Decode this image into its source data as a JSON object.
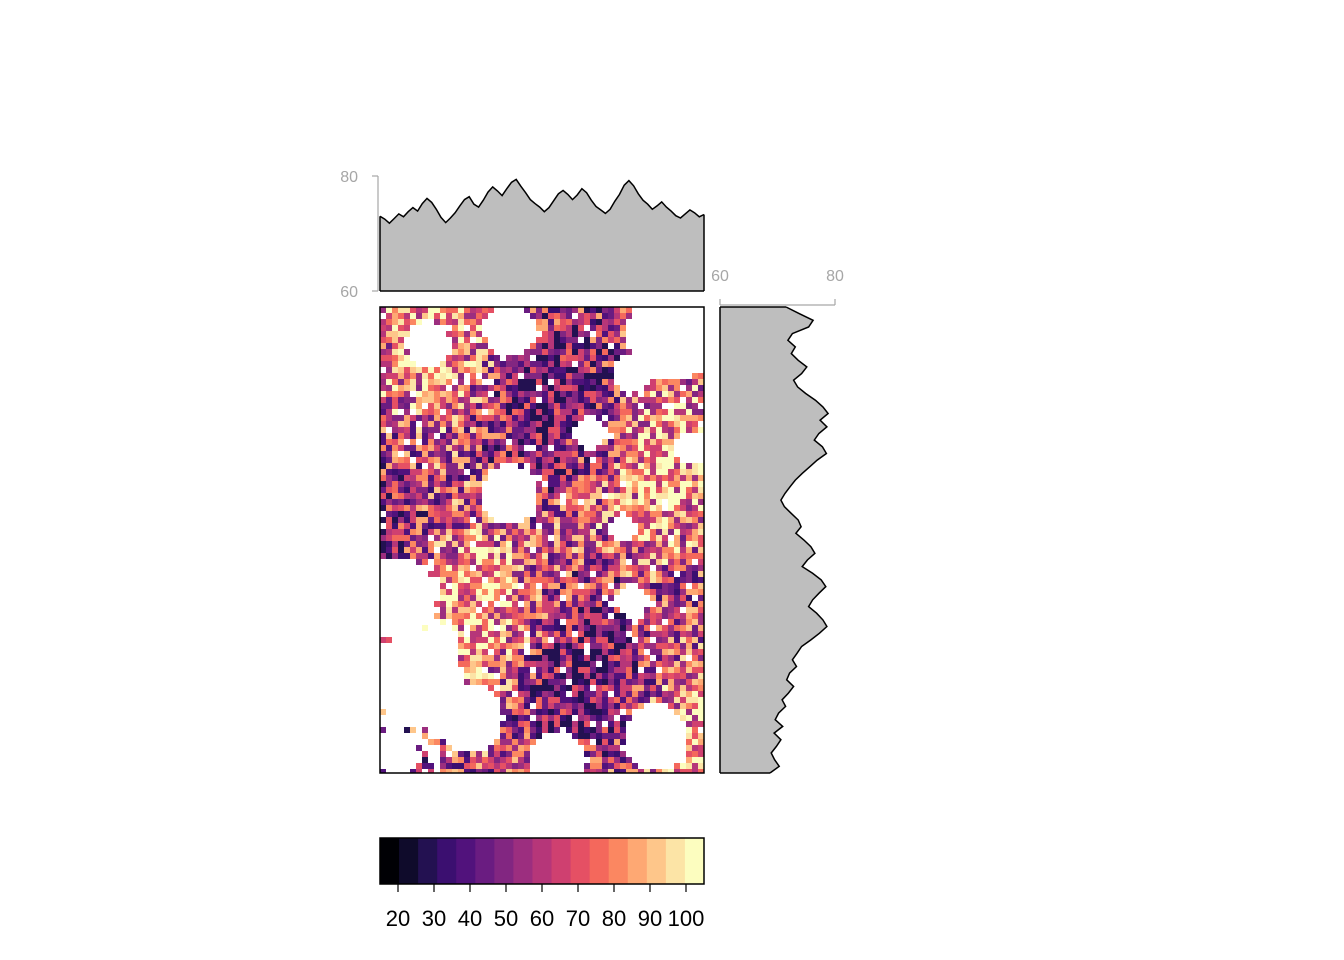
{
  "chart_data": [
    {
      "type": "heatmap",
      "title": "",
      "xlabel": "",
      "ylabel": "",
      "description_free": true,
      "value_range": [
        15,
        105
      ],
      "palette": [
        "#000004",
        "#0f0b2b",
        "#231151",
        "#3b0f70",
        "#51127c",
        "#6a1c81",
        "#822681",
        "#9c2e7f",
        "#b63679",
        "#cf4070",
        "#e55064",
        "#f4685c",
        "#fb8761",
        "#fea873",
        "#fec68a",
        "#fce4a6",
        "#fcfdbf"
      ],
      "legend_ticks": [
        "20",
        "30",
        "40",
        "50",
        "60",
        "70",
        "80",
        "90",
        "100"
      ],
      "legend_tick_values": [
        20,
        30,
        40,
        50,
        60,
        70,
        80,
        90,
        100
      ],
      "legend_placement": "bottom"
    },
    {
      "type": "area",
      "role": "column-mean-profile",
      "placement": "top",
      "ylim": [
        60,
        80
      ],
      "yticks": [
        "60",
        "80"
      ],
      "values": [
        73,
        72.5,
        71.8,
        72.6,
        73.4,
        72.9,
        73.8,
        74.5,
        73.9,
        75.2,
        76.1,
        75.4,
        74.2,
        72.8,
        71.9,
        72.7,
        73.6,
        74.8,
        75.9,
        76.4,
        75.1,
        74.6,
        75.8,
        77.2,
        78.1,
        77.4,
        76.6,
        77.8,
        78.9,
        79.4,
        78.2,
        77.1,
        75.9,
        75.2,
        74.6,
        73.8,
        74.5,
        75.7,
        76.9,
        77.5,
        76.8,
        75.9,
        76.7,
        77.8,
        77.1,
        75.8,
        74.7,
        74.1,
        73.5,
        74.2,
        75.6,
        76.8,
        78.4,
        79.2,
        78.3,
        76.9,
        75.8,
        75.1,
        74.2,
        74.8,
        75.5,
        74.6,
        73.9,
        73.1,
        72.7,
        73.4,
        74.1,
        73.6,
        72.9,
        73.3
      ]
    },
    {
      "type": "area",
      "role": "row-mean-profile",
      "placement": "right",
      "xlim": [
        60,
        80
      ],
      "xticks": [
        "60",
        "80"
      ],
      "values": [
        71.5,
        73.8,
        76.2,
        75.4,
        72.6,
        71.8,
        73.1,
        72.4,
        73.6,
        75.1,
        74.2,
        72.8,
        73.5,
        74.9,
        76.6,
        77.9,
        78.8,
        77.4,
        78.6,
        77.2,
        76.4,
        77.8,
        78.5,
        76.9,
        75.6,
        74.3,
        73.1,
        72.2,
        71.3,
        70.6,
        71.2,
        72.4,
        73.6,
        74.1,
        73.2,
        74.6,
        75.8,
        76.5,
        75.2,
        74.3,
        76.1,
        77.6,
        78.4,
        77.2,
        76.1,
        75.4,
        76.8,
        77.9,
        78.6,
        77.3,
        75.8,
        74.2,
        73.4,
        72.6,
        73.3,
        72.1,
        71.6,
        72.8,
        71.9,
        70.8,
        71.4,
        70.2,
        69.6,
        70.9,
        69.4,
        70.6,
        69.8,
        68.9,
        69.5,
        70.3,
        68.7
      ]
    }
  ]
}
